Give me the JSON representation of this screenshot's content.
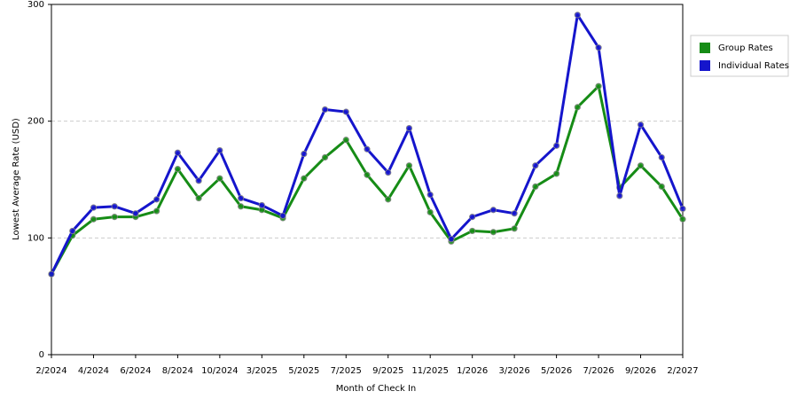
{
  "chart_data": {
    "type": "line",
    "x_label": "Month of Check In",
    "y_label": "Lowest Average Rate (USD)",
    "categories": [
      "2/2024",
      null,
      "4/2024",
      null,
      "6/2024",
      null,
      "8/2024",
      null,
      "10/2024",
      null,
      "3/2025",
      null,
      "5/2025",
      null,
      "7/2025",
      null,
      "9/2025",
      null,
      "11/2025",
      null,
      "1/2026",
      null,
      "3/2026",
      null,
      "5/2026",
      null,
      "7/2026",
      null,
      "9/2026",
      null,
      "2/2027"
    ],
    "series": [
      {
        "name": "Group Rates",
        "color": "#168c16",
        "values": [
          69,
          102,
          116,
          118,
          118,
          123,
          159,
          134,
          151,
          127,
          124,
          117,
          151,
          169,
          184,
          154,
          133,
          162,
          122,
          97,
          106,
          105,
          108,
          144,
          155,
          212,
          230,
          143,
          162,
          144,
          116
        ]
      },
      {
        "name": "Individual Rates",
        "color": "#1515cc",
        "values": [
          69,
          106,
          126,
          127,
          121,
          133,
          173,
          149,
          175,
          134,
          128,
          119,
          172,
          210,
          208,
          176,
          156,
          194,
          137,
          99,
          118,
          124,
          121,
          162,
          179,
          291,
          263,
          136,
          197,
          169,
          125
        ]
      }
    ],
    "ylim": [
      0,
      300
    ],
    "yticks": [
      0,
      100,
      200,
      300
    ],
    "grid": true,
    "legend": "right"
  }
}
